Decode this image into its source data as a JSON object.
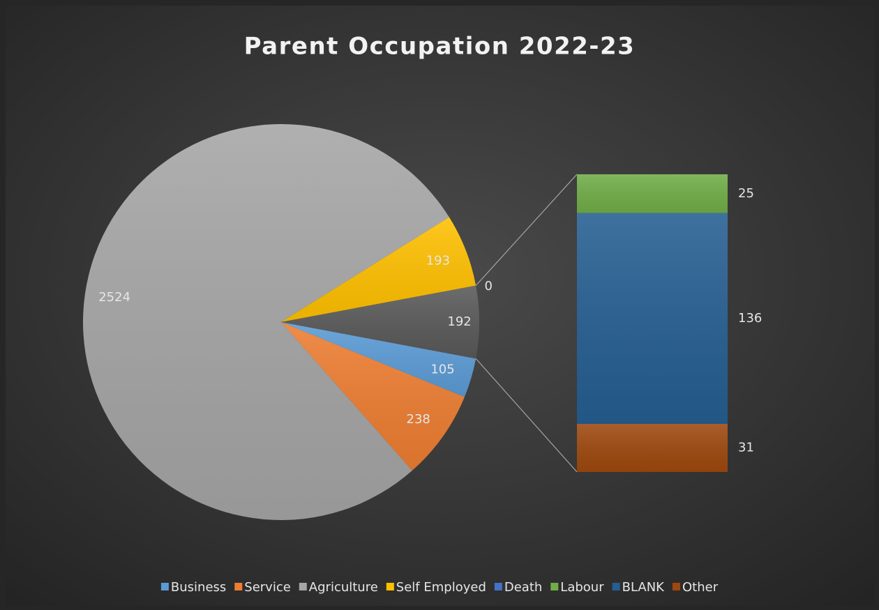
{
  "chart_data": {
    "type": "barofpie",
    "title": "Parent Occupation 2022-23",
    "categories": [
      "Business",
      "Service",
      "Agriculture",
      "Self Employed",
      "Death",
      "Labour",
      "BLANK",
      "Other"
    ],
    "values": [
      105,
      238,
      2524,
      193,
      0,
      25,
      136,
      31
    ],
    "colors": [
      "#5b9bd5",
      "#ed7d31",
      "#a5a5a5",
      "#ffc000",
      "#4472c4",
      "#70ad47",
      "#255e91",
      "#9e480e"
    ],
    "secondary_count": 3,
    "combined_value": 192,
    "combined_color": "#595959",
    "legend": "bottom"
  }
}
